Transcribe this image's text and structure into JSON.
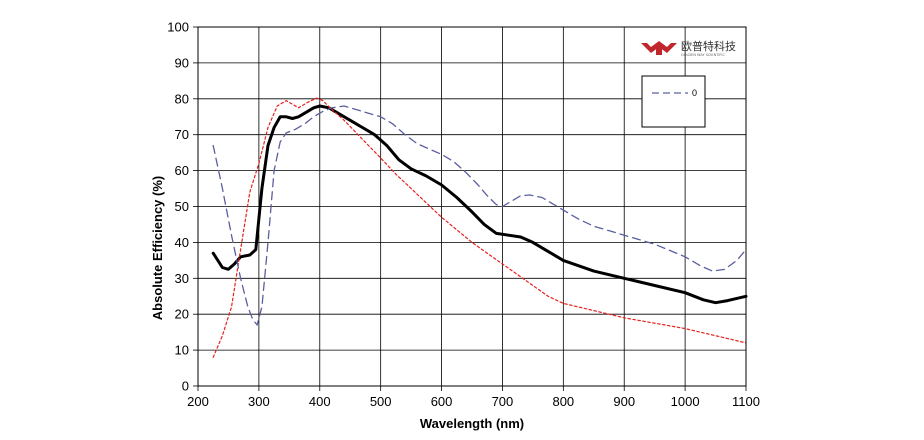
{
  "chart_data": {
    "type": "line",
    "title": "",
    "xlabel": "Wavelength (nm)",
    "ylabel": "Absolute Efficiency (%)",
    "xlim": [
      200,
      1100
    ],
    "ylim": [
      0,
      100
    ],
    "xticks": [
      200,
      300,
      400,
      500,
      600,
      700,
      800,
      900,
      1000,
      1100
    ],
    "yticks": [
      0,
      10,
      20,
      30,
      40,
      50,
      60,
      70,
      80,
      90,
      100
    ],
    "grid": true,
    "legend_position": "top-right",
    "series": [
      {
        "legend_label": "",
        "color": "#000000",
        "style": "solid",
        "points": [
          [
            225,
            37
          ],
          [
            240,
            33
          ],
          [
            250,
            32.5
          ],
          [
            260,
            34
          ],
          [
            270,
            36
          ],
          [
            285,
            36.5
          ],
          [
            295,
            38
          ],
          [
            305,
            55
          ],
          [
            315,
            67
          ],
          [
            325,
            72
          ],
          [
            335,
            75
          ],
          [
            345,
            75
          ],
          [
            355,
            74.5
          ],
          [
            365,
            75
          ],
          [
            380,
            76.5
          ],
          [
            390,
            77.5
          ],
          [
            400,
            78
          ],
          [
            415,
            77.5
          ],
          [
            430,
            76
          ],
          [
            450,
            74
          ],
          [
            470,
            72
          ],
          [
            490,
            70
          ],
          [
            510,
            67
          ],
          [
            530,
            63
          ],
          [
            550,
            60.5
          ],
          [
            575,
            58.5
          ],
          [
            600,
            56
          ],
          [
            625,
            52.5
          ],
          [
            650,
            48.5
          ],
          [
            670,
            45
          ],
          [
            690,
            42.5
          ],
          [
            710,
            42
          ],
          [
            730,
            41.5
          ],
          [
            750,
            40
          ],
          [
            775,
            37.5
          ],
          [
            800,
            35
          ],
          [
            850,
            32
          ],
          [
            900,
            30
          ],
          [
            950,
            28
          ],
          [
            1000,
            26
          ],
          [
            1030,
            24
          ],
          [
            1050,
            23.2
          ],
          [
            1070,
            23.8
          ],
          [
            1100,
            25
          ]
        ]
      },
      {
        "legend_label": "",
        "color": "#e8201c",
        "style": "dotted",
        "points": [
          [
            225,
            8
          ],
          [
            240,
            14
          ],
          [
            255,
            22
          ],
          [
            270,
            38
          ],
          [
            285,
            54
          ],
          [
            300,
            62
          ],
          [
            315,
            72
          ],
          [
            330,
            78
          ],
          [
            345,
            79.5
          ],
          [
            355,
            78.5
          ],
          [
            365,
            77.5
          ],
          [
            380,
            79
          ],
          [
            395,
            80.2
          ],
          [
            405,
            79.5
          ],
          [
            420,
            77
          ],
          [
            440,
            74
          ],
          [
            460,
            70.5
          ],
          [
            480,
            67
          ],
          [
            500,
            63.5
          ],
          [
            525,
            59
          ],
          [
            550,
            55
          ],
          [
            575,
            51
          ],
          [
            600,
            47
          ],
          [
            625,
            43.5
          ],
          [
            650,
            40
          ],
          [
            675,
            37
          ],
          [
            700,
            34
          ],
          [
            725,
            31
          ],
          [
            750,
            28
          ],
          [
            775,
            25
          ],
          [
            800,
            23
          ],
          [
            850,
            21
          ],
          [
            900,
            19
          ],
          [
            950,
            17.5
          ],
          [
            1000,
            16
          ],
          [
            1050,
            14
          ],
          [
            1100,
            12
          ]
        ]
      },
      {
        "legend_label": "0",
        "color": "#5a5fa0",
        "style": "dashed",
        "points": [
          [
            225,
            67
          ],
          [
            240,
            55
          ],
          [
            255,
            42
          ],
          [
            270,
            30
          ],
          [
            282,
            22
          ],
          [
            290,
            18.5
          ],
          [
            297,
            17
          ],
          [
            305,
            22
          ],
          [
            315,
            40
          ],
          [
            325,
            60
          ],
          [
            335,
            68
          ],
          [
            345,
            70.5
          ],
          [
            360,
            71.5
          ],
          [
            375,
            73
          ],
          [
            390,
            75
          ],
          [
            405,
            76.5
          ],
          [
            420,
            77.5
          ],
          [
            440,
            78
          ],
          [
            460,
            77
          ],
          [
            480,
            76
          ],
          [
            500,
            75
          ],
          [
            520,
            73
          ],
          [
            540,
            70
          ],
          [
            560,
            67.5
          ],
          [
            580,
            66
          ],
          [
            600,
            64.5
          ],
          [
            620,
            62.5
          ],
          [
            640,
            59.5
          ],
          [
            660,
            56
          ],
          [
            675,
            53
          ],
          [
            690,
            50.5
          ],
          [
            700,
            50
          ],
          [
            715,
            51.5
          ],
          [
            730,
            53
          ],
          [
            745,
            53.2
          ],
          [
            765,
            52.5
          ],
          [
            785,
            50.5
          ],
          [
            800,
            49
          ],
          [
            825,
            46.5
          ],
          [
            850,
            44.5
          ],
          [
            900,
            42
          ],
          [
            950,
            39.5
          ],
          [
            1000,
            36
          ],
          [
            1025,
            33.5
          ],
          [
            1045,
            32
          ],
          [
            1065,
            32.5
          ],
          [
            1085,
            35
          ],
          [
            1100,
            38
          ]
        ]
      }
    ]
  },
  "logo": {
    "text": "欧普特科技",
    "subtext": "GOLDEN WAY SCIENTIFIC",
    "color": "#c0272d"
  }
}
